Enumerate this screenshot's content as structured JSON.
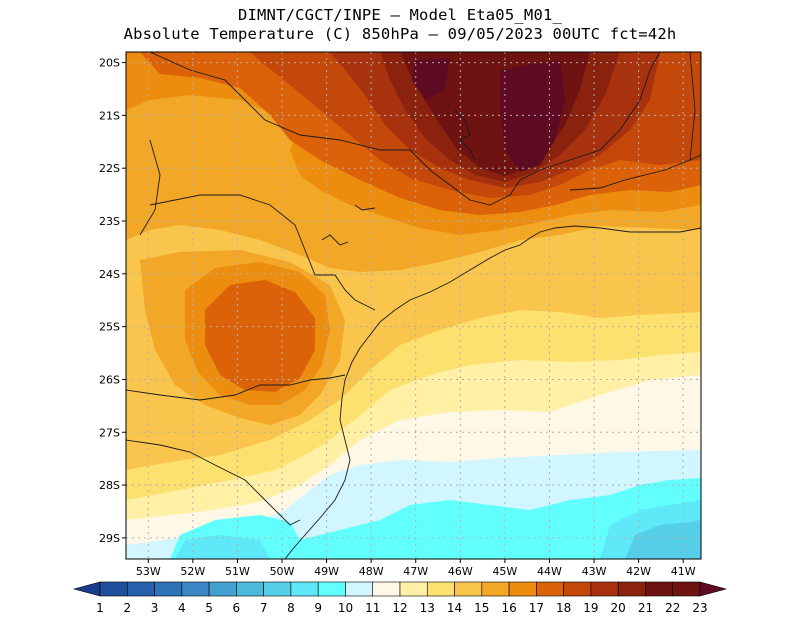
{
  "title": {
    "line1": "DIMNT/CGCT/INPE –   Model Eta05_M01_",
    "line2": "Absolute Temperature (C) 850hPa –   09/05/2023 00UTC fct=42h"
  },
  "map": {
    "lat_labels": [
      "20S",
      "21S",
      "22S",
      "23S",
      "24S",
      "25S",
      "26S",
      "27S",
      "28S",
      "29S"
    ],
    "lon_labels": [
      "53W",
      "52W",
      "51W",
      "50W",
      "49W",
      "48W",
      "47W",
      "46W",
      "45W",
      "44W",
      "43W",
      "42W",
      "41W"
    ],
    "lat_range": [
      -29.4,
      -19.8
    ],
    "lon_range": [
      -53.5,
      -40.6
    ]
  },
  "colorbar": {
    "labels": [
      "1",
      "2",
      "3",
      "4",
      "5",
      "6",
      "7",
      "8",
      "9",
      "10",
      "11",
      "12",
      "13",
      "14",
      "15",
      "16",
      "17",
      "18",
      "19",
      "20",
      "21",
      "22",
      "23"
    ],
    "colors": [
      "#1a3c8c",
      "#1f4e9c",
      "#2660aa",
      "#2e72b8",
      "#3a86c4",
      "#44a0d0",
      "#4cb8dc",
      "#55cfe8",
      "#5fe8f7",
      "#62ffff",
      "#d2f6ff",
      "#fff8e6",
      "#fff0a6",
      "#fde16e",
      "#f9c54c",
      "#f3a726",
      "#ec8d10",
      "#db6208",
      "#c4480a",
      "#a8320e",
      "#8a220e",
      "#6e1212",
      "#5e0a22"
    ]
  }
}
